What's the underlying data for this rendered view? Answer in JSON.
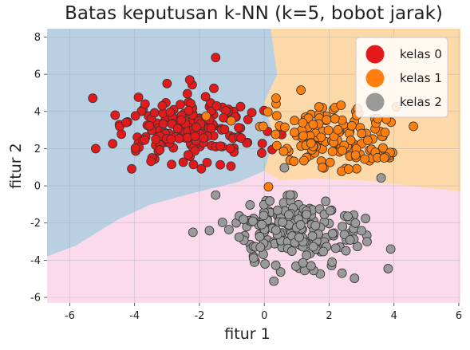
{
  "chart_data": {
    "type": "scatter",
    "title": "Batas keputusan k-NN (k=5, bobot jarak)",
    "xlabel": "fitur 1",
    "ylabel": "fitur 2",
    "xlim": [
      -6.7,
      6.05
    ],
    "ylim": [
      -6.3,
      8.45
    ],
    "xticks": [
      -6,
      -4,
      -2,
      0,
      2,
      4,
      6
    ],
    "yticks": [
      -6,
      -4,
      -2,
      0,
      2,
      4,
      6,
      8
    ],
    "grid": true,
    "legend_position": "top-right",
    "regions": [
      {
        "class": "kelas 0",
        "color": "#b9cfe2"
      },
      {
        "class": "kelas 1",
        "color": "#fdd8a8"
      },
      {
        "class": "kelas 2",
        "color": "#fbdaeb"
      }
    ],
    "series": [
      {
        "name": "kelas 0",
        "color": "#e31a1c",
        "center": [
          -2.2,
          2.9
        ],
        "spread": [
          1.05,
          0.95
        ],
        "count": 190,
        "outliers": [
          [
            -5.2,
            2.0
          ],
          [
            -4.6,
            3.8
          ],
          [
            -1.5,
            6.9
          ],
          [
            -2.3,
            5.7
          ],
          [
            -3.0,
            5.5
          ]
        ]
      },
      {
        "name": "kelas 1",
        "color": "#ff7f0e",
        "center": [
          2.0,
          2.5
        ],
        "spread": [
          0.95,
          0.85
        ],
        "count": 150,
        "outliers": [
          [
            4.6,
            3.2
          ],
          [
            3.7,
            1.5
          ],
          [
            2.6,
            0.9
          ]
        ]
      },
      {
        "name": "kelas 2",
        "color": "#9a9a9a",
        "center": [
          1.0,
          -2.5
        ],
        "spread": [
          1.05,
          1.05
        ],
        "count": 190,
        "outliers": [
          [
            -2.2,
            -2.5
          ],
          [
            -1.5,
            -0.5
          ],
          [
            2.4,
            -4.7
          ],
          [
            3.9,
            -3.4
          ]
        ]
      }
    ]
  }
}
